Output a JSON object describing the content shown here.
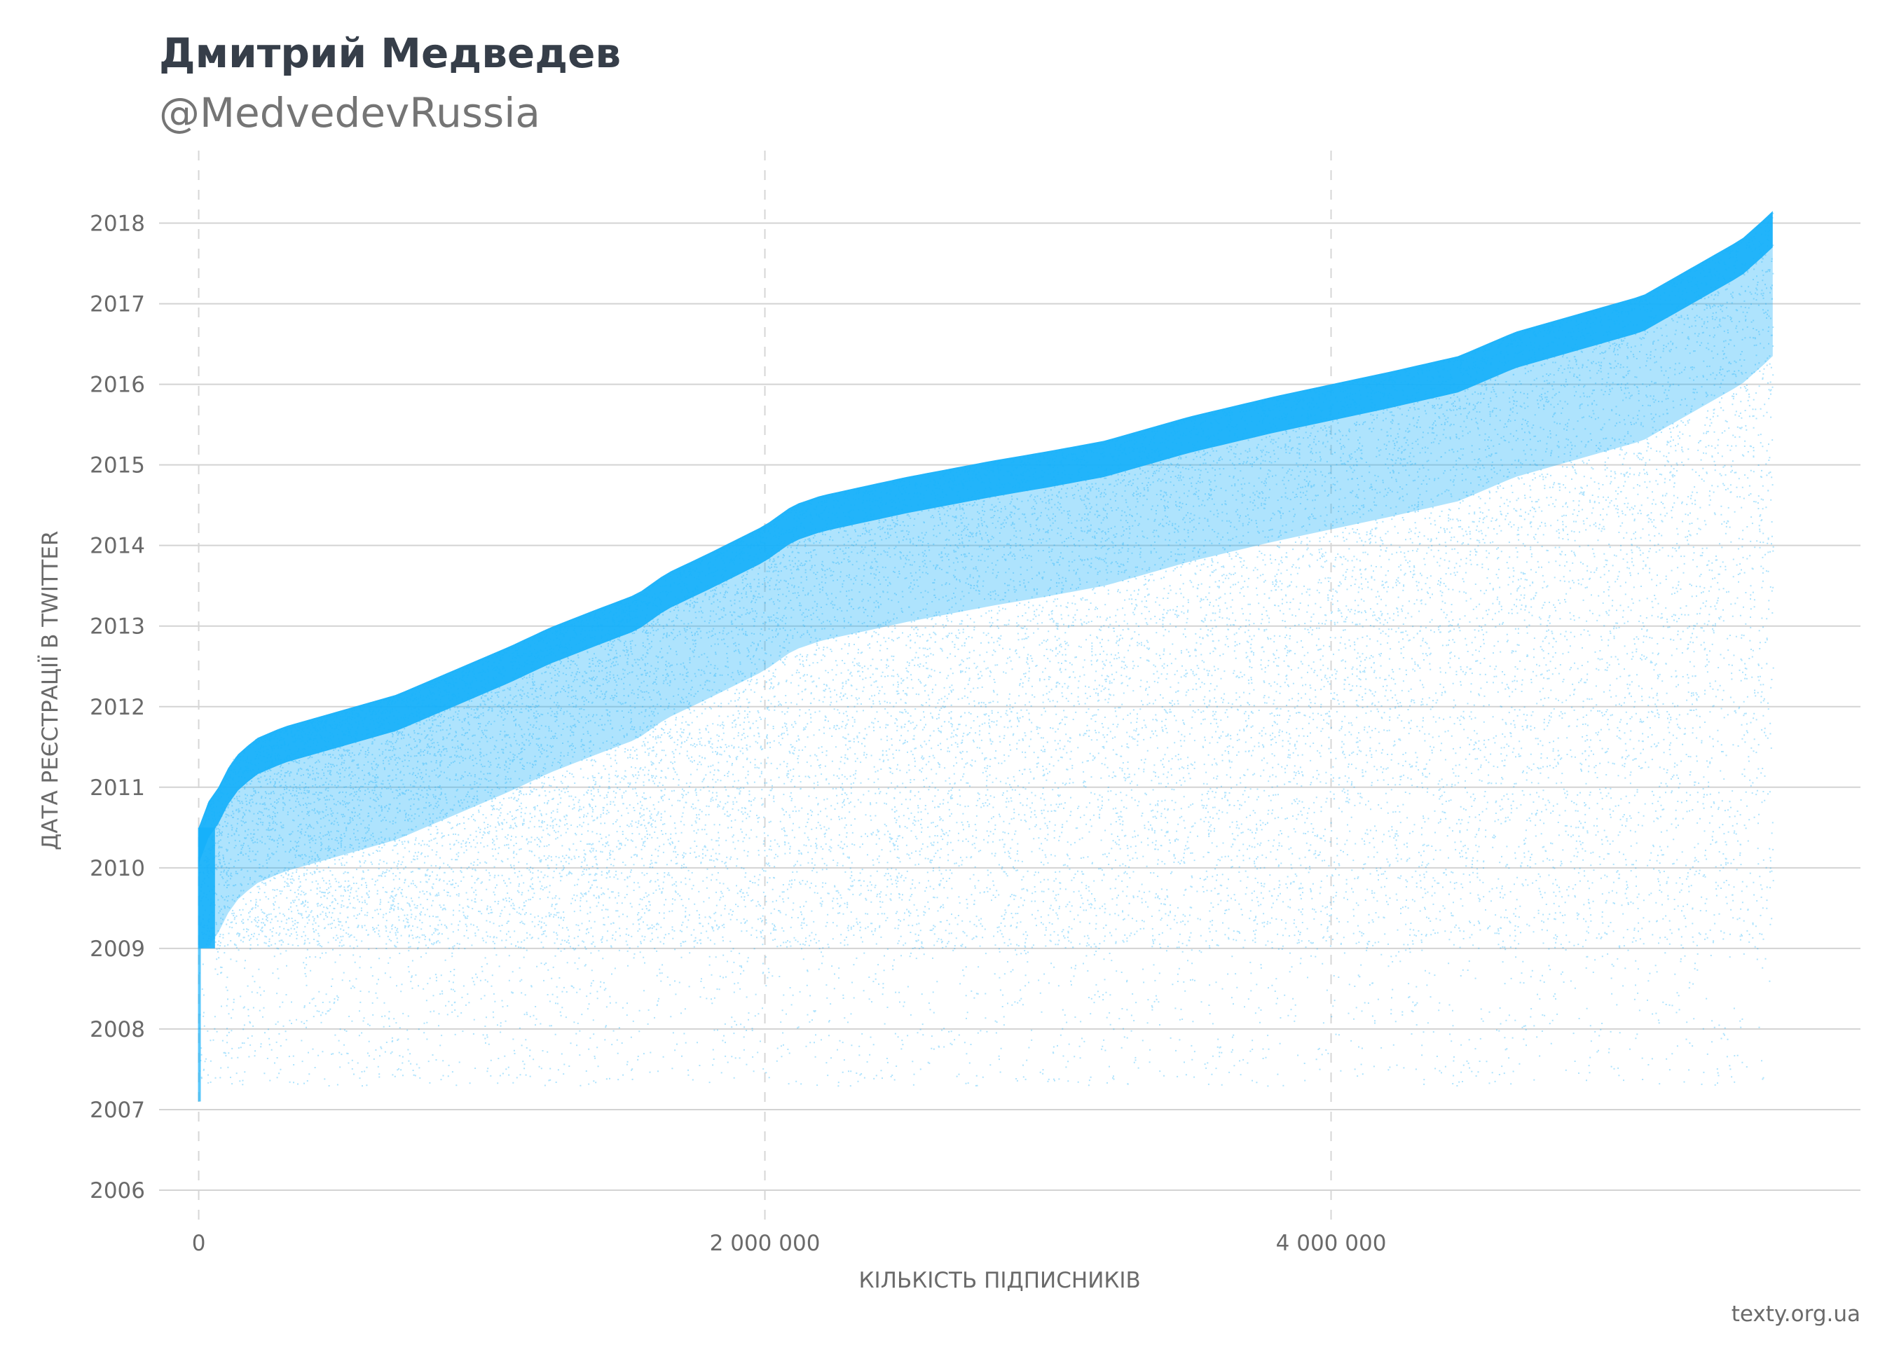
{
  "title": "Дмитрий Медведев",
  "subtitle": "@MedvedevRussia",
  "credit": "texty.org.ua",
  "chart_data": {
    "type": "scatter",
    "title": "Дмитрий Медведев",
    "subtitle": "@MedvedevRussia",
    "xlabel": "КІЛЬКІСТЬ ПІДПИСНИКІВ",
    "ylabel": "ДАТА РЕЄСТРАЦІЇ В TWITTER",
    "xlim": [
      -140000,
      5870000
    ],
    "ylim": [
      2005.6,
      2018.9
    ],
    "x_ticks": [
      0,
      2000000,
      4000000
    ],
    "x_tick_labels": [
      "0",
      "2 000 000",
      "4 000 000"
    ],
    "y_ticks": [
      2006,
      2007,
      2008,
      2009,
      2010,
      2011,
      2012,
      2013,
      2014,
      2015,
      2016,
      2017,
      2018
    ],
    "y_tick_labels": [
      "2006",
      "2007",
      "2008",
      "2009",
      "2010",
      "2011",
      "2012",
      "2013",
      "2014",
      "2015",
      "2016",
      "2017",
      "2018"
    ],
    "grid": {
      "horizontal": "solid",
      "vertical": "dashed"
    },
    "point_color": "#16b0fa",
    "series": [
      {
        "upper_envelope": [
          [
            0,
            2010.5
          ],
          [
            10000,
            2010.5
          ],
          [
            30000,
            2010.8
          ],
          [
            70000,
            2011.0
          ],
          [
            120000,
            2011.35
          ],
          [
            200000,
            2011.6
          ],
          [
            300000,
            2011.75
          ],
          [
            500000,
            2011.95
          ],
          [
            700000,
            2012.15
          ],
          [
            900000,
            2012.45
          ],
          [
            1100000,
            2012.75
          ],
          [
            1240000,
            2012.98
          ],
          [
            1400000,
            2013.2
          ],
          [
            1550000,
            2013.4
          ],
          [
            1650000,
            2013.65
          ],
          [
            1800000,
            2013.9
          ],
          [
            2000000,
            2014.25
          ],
          [
            2100000,
            2014.5
          ],
          [
            2200000,
            2014.62
          ],
          [
            2500000,
            2014.85
          ],
          [
            2800000,
            2015.05
          ],
          [
            3000000,
            2015.17
          ],
          [
            3200000,
            2015.3
          ],
          [
            3500000,
            2015.6
          ],
          [
            3800000,
            2015.85
          ],
          [
            4000000,
            2016.0
          ],
          [
            4200000,
            2016.15
          ],
          [
            4450000,
            2016.35
          ],
          [
            4650000,
            2016.65
          ],
          [
            4900000,
            2016.9
          ],
          [
            5100000,
            2017.1
          ],
          [
            5300000,
            2017.5
          ],
          [
            5450000,
            2017.8
          ],
          [
            5530000,
            2018.05
          ],
          [
            5560000,
            2018.15
          ]
        ],
        "extent_x": [
          0,
          5560000
        ],
        "min_y": 2007.0
      }
    ]
  }
}
